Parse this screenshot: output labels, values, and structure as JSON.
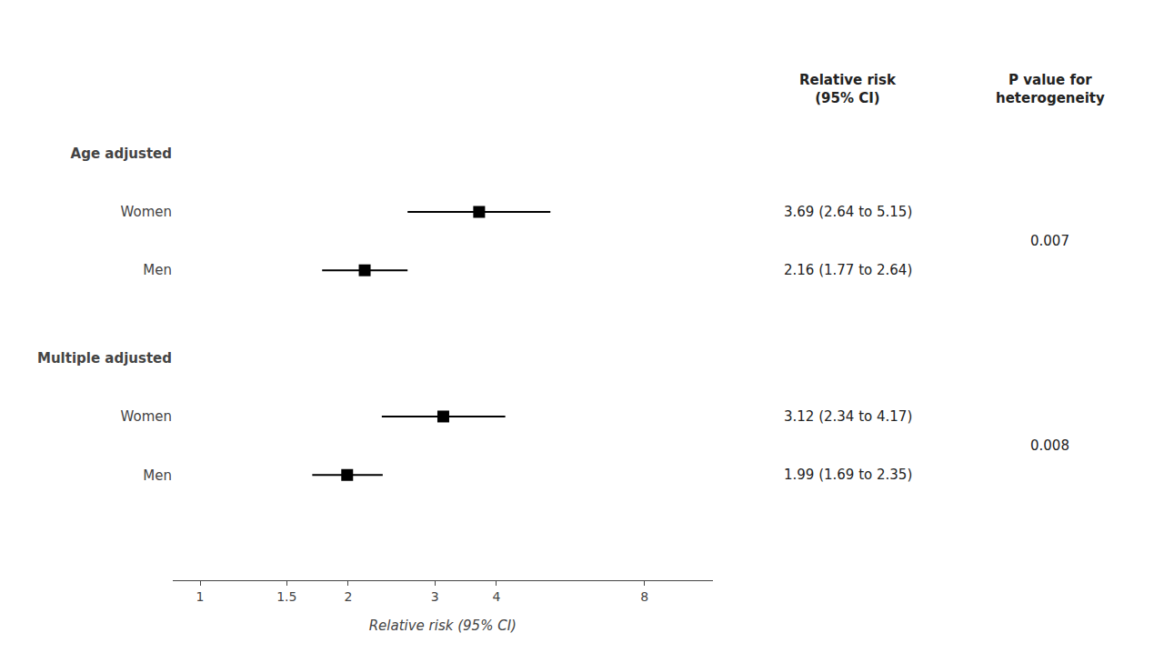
{
  "chart_data": {
    "type": "forest",
    "x_label": "Relative risk (95% CI)",
    "log": "x",
    "xlim": [
      0.88,
      11.0
    ],
    "xticks": [
      1,
      1.5,
      2,
      3,
      4,
      8
    ],
    "grid": false,
    "column_headers": [
      "Relative risk\n(95% CI)",
      "P value for\nheterogeneity"
    ],
    "groups": [
      {
        "label": "Age adjusted",
        "p_value": 0.007,
        "rows": [
          {
            "name": "Women",
            "value": 3.69,
            "ci_low": 2.64,
            "ci_high": 5.15,
            "value_label": "3.69 (2.64 to 5.15)"
          },
          {
            "name": "Men",
            "value": 2.16,
            "ci_low": 1.77,
            "ci_high": 2.64,
            "value_label": "2.16 (1.77 to 2.64)"
          }
        ]
      },
      {
        "label": "Multiple adjusted",
        "p_value": 0.008,
        "rows": [
          {
            "name": "Women",
            "value": 3.12,
            "ci_low": 2.34,
            "ci_high": 4.17,
            "value_label": "3.12 (2.34 to 4.17)"
          },
          {
            "name": "Men",
            "value": 1.99,
            "ci_low": 1.69,
            "ci_high": 2.35,
            "value_label": "1.99 (1.69 to 2.35)"
          }
        ]
      }
    ]
  }
}
